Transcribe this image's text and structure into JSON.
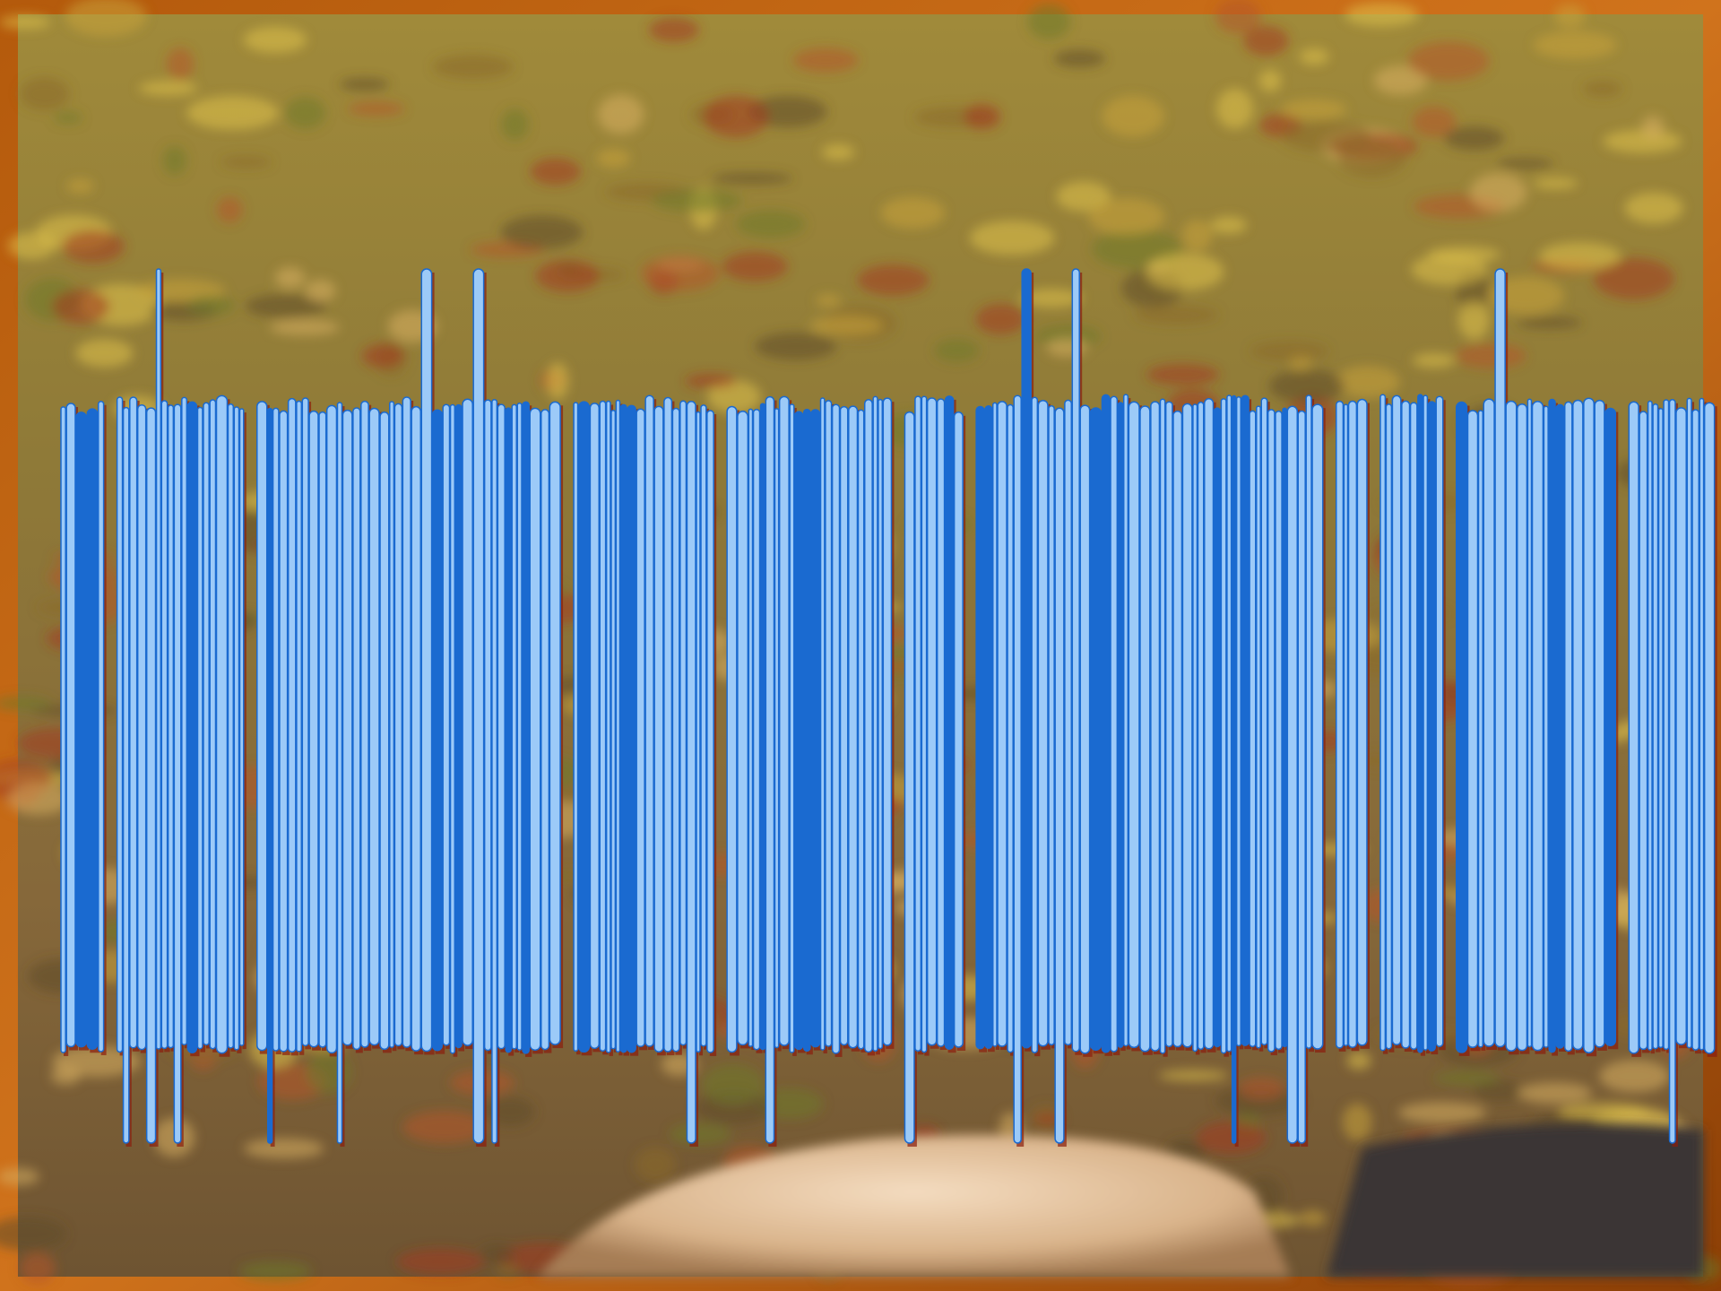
{
  "slide": {
    "type": "photo-slide"
  }
}
